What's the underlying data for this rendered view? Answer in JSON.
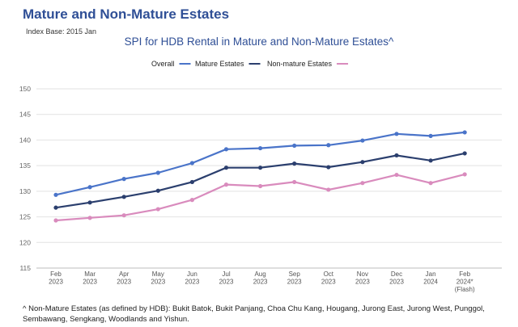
{
  "header": {
    "title": "Mature and Non-Mature Estates",
    "subtitle": "Index Base: 2015 Jan"
  },
  "footnote": "^ Non-Mature Estates (as defined by HDB): Bukit Batok, Bukit Panjang, Choa Chu Kang, Hougang, Jurong East, Jurong West, Punggol, Sembawang, Sengkang, Woodlands and Yishun.",
  "chart_data": {
    "type": "line",
    "title": "SPI for HDB Rental in Mature and Non-Mature Estates^",
    "xlabel": "",
    "ylabel": "",
    "ylim": [
      115,
      150
    ],
    "yticks": [
      115,
      120,
      125,
      130,
      135,
      140,
      145,
      150
    ],
    "grid": true,
    "legend_position": "top",
    "categories": [
      [
        "Feb",
        "2023"
      ],
      [
        "Mar",
        "2023"
      ],
      [
        "Apr",
        "2023"
      ],
      [
        "May",
        "2023"
      ],
      [
        "Jun",
        "2023"
      ],
      [
        "Jul",
        "2023"
      ],
      [
        "Aug",
        "2023"
      ],
      [
        "Sep",
        "2023"
      ],
      [
        "Oct",
        "2023"
      ],
      [
        "Nov",
        "2023"
      ],
      [
        "Dec",
        "2023"
      ],
      [
        "Jan",
        "2024"
      ],
      [
        "Feb",
        "2024*",
        "(Flash)"
      ]
    ],
    "series": [
      {
        "name": "Overall",
        "color": "#4a74c9",
        "values": [
          129.3,
          130.8,
          132.4,
          133.6,
          135.5,
          138.2,
          138.4,
          138.9,
          139.0,
          139.9,
          141.2,
          140.8,
          141.5
        ]
      },
      {
        "name": "Mature Estates",
        "color": "#2b3f6e",
        "values": [
          126.8,
          127.8,
          128.9,
          130.1,
          131.8,
          134.6,
          134.6,
          135.4,
          134.7,
          135.7,
          137.0,
          136.0,
          137.4
        ]
      },
      {
        "name": "Non-mature Estates",
        "color": "#d98bbd",
        "values": [
          124.3,
          124.8,
          125.3,
          126.5,
          128.3,
          131.3,
          131.0,
          131.8,
          130.3,
          131.6,
          133.2,
          131.6,
          133.3
        ]
      }
    ]
  }
}
